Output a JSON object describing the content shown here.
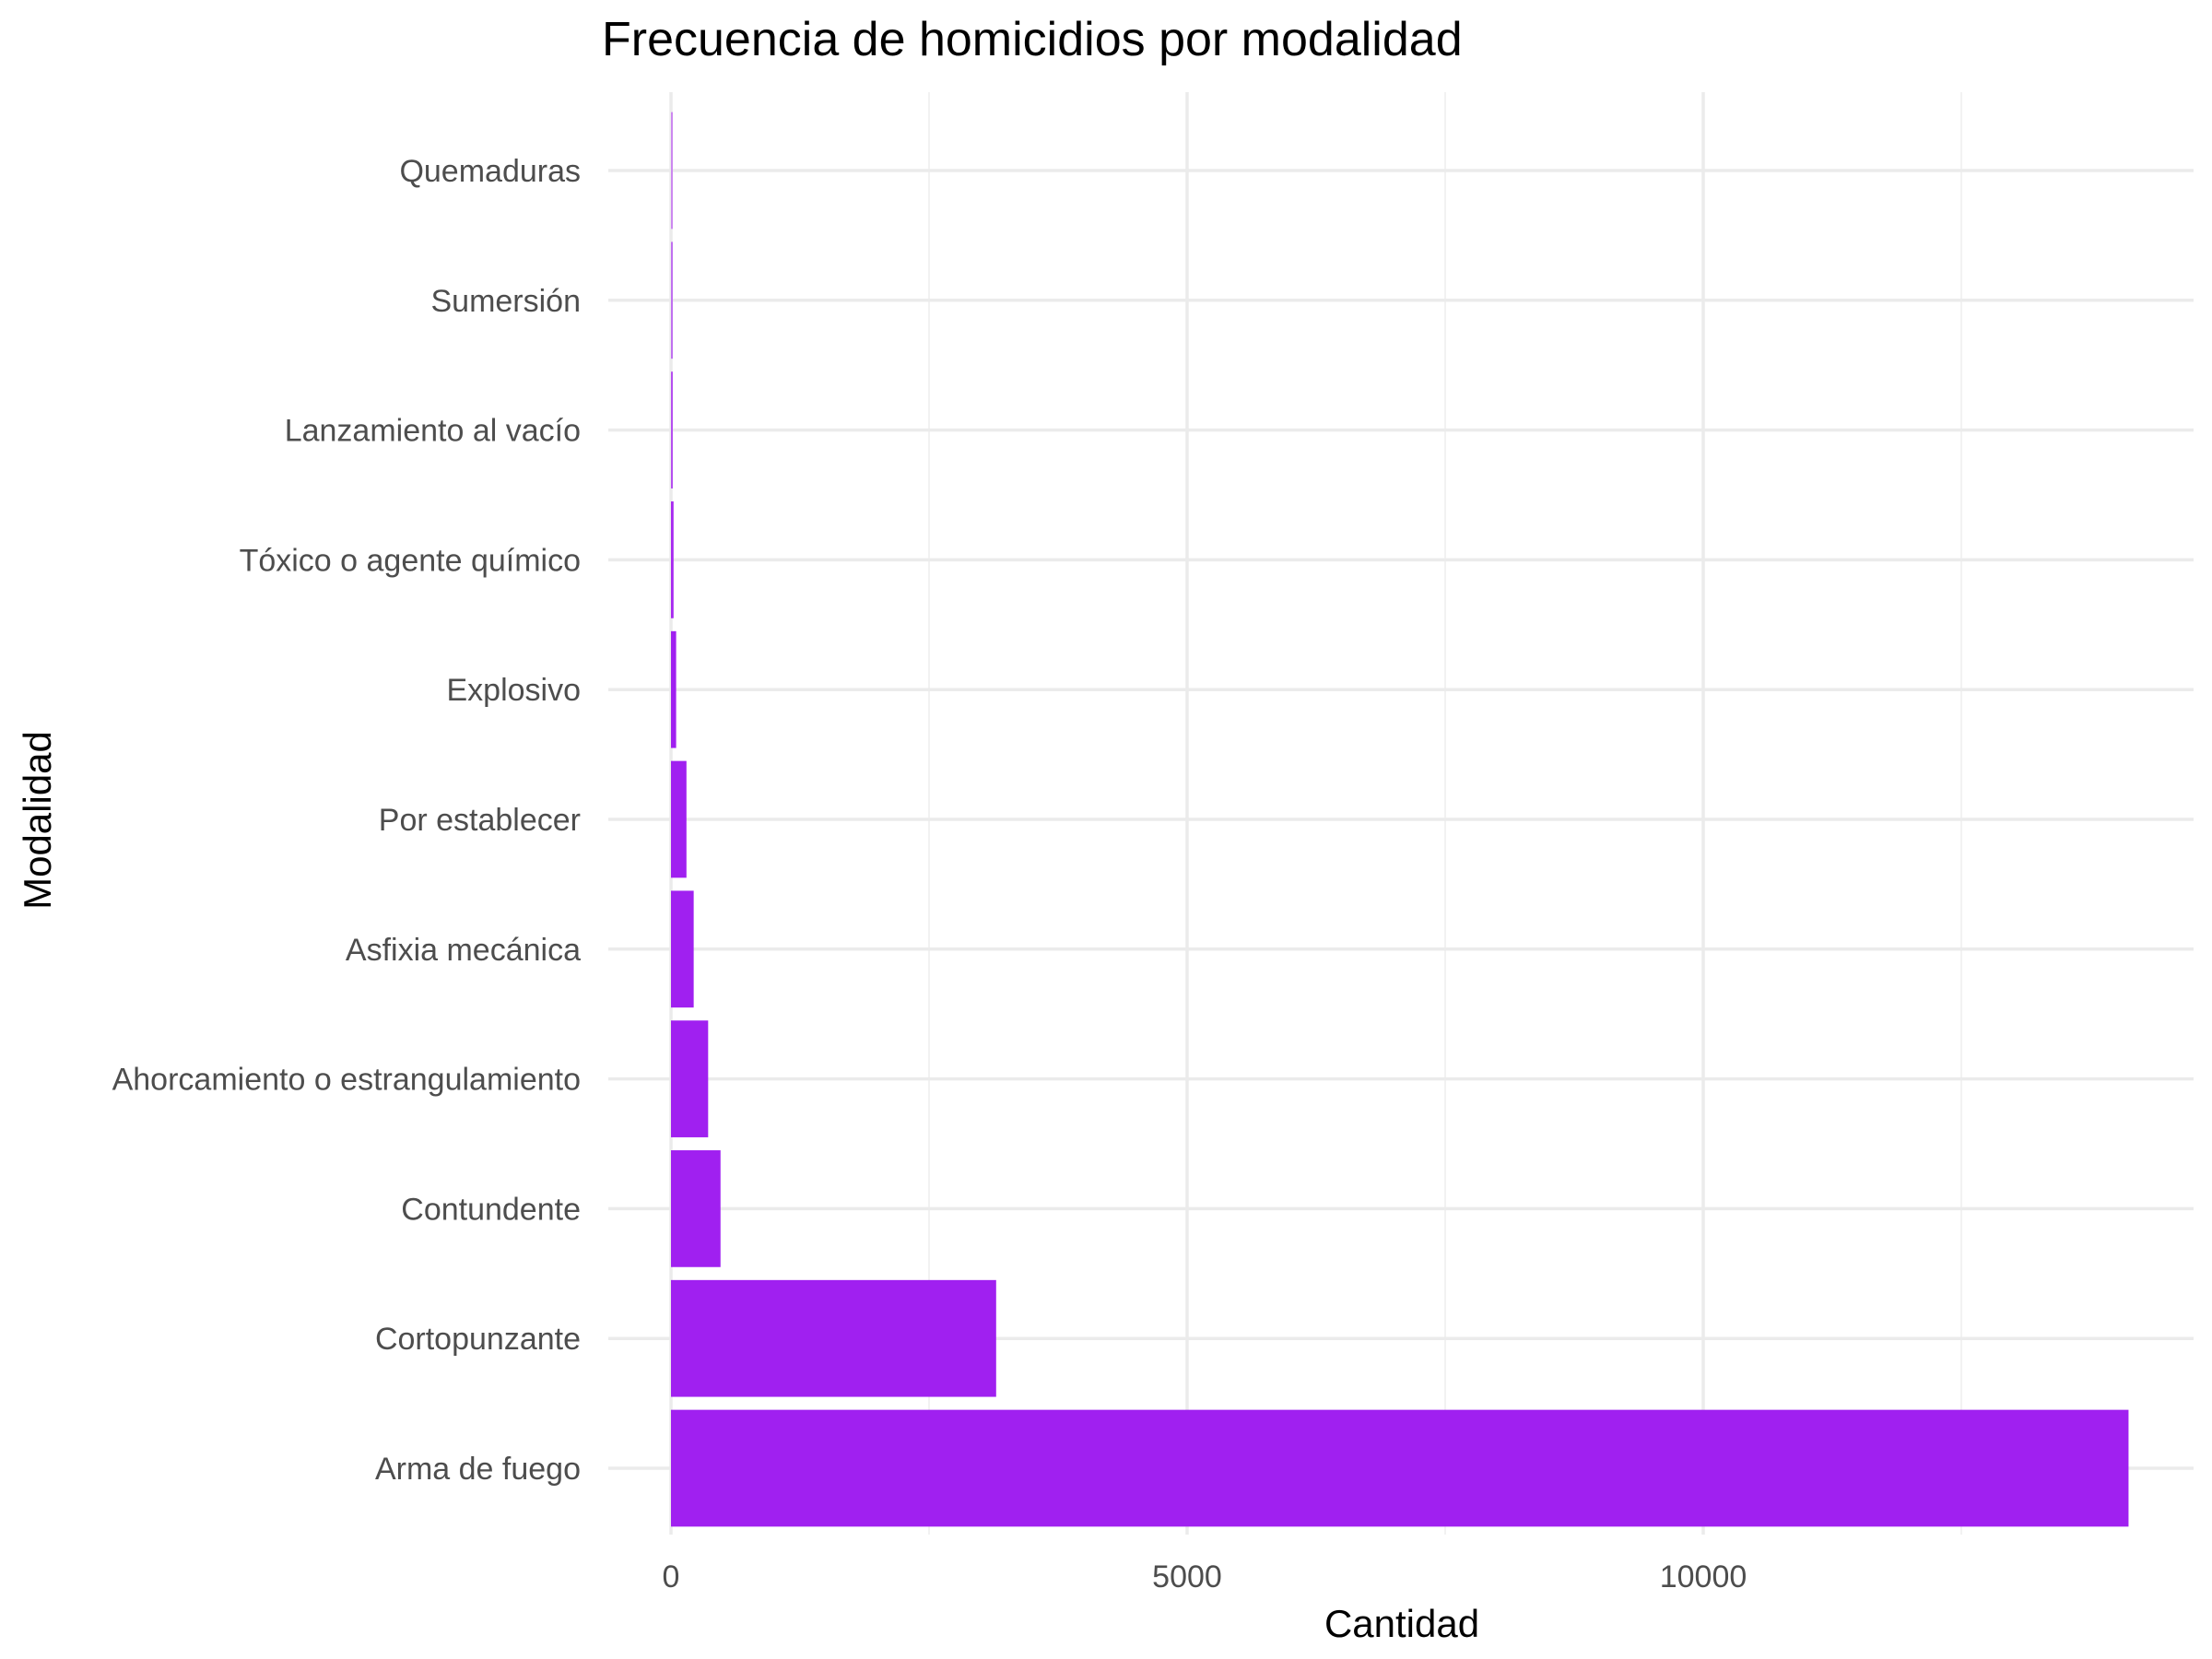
{
  "chart_data": {
    "type": "bar",
    "orientation": "horizontal",
    "title": "Frecuencia de homicidios por modalidad",
    "xlabel": "Cantidad",
    "ylabel": "Modalidad",
    "categories": [
      "Arma de fuego",
      "Cortopunzante",
      "Contundente",
      "Ahorcamiento o estrangulamiento",
      "Asfixia mecánica",
      "Por establecer",
      "Explosivo",
      "Tóxico o agente químico",
      "Lanzamiento al vacío",
      "Sumersión",
      "Quemaduras"
    ],
    "values": [
      14120,
      3150,
      480,
      360,
      220,
      150,
      50,
      25,
      15,
      12,
      10
    ],
    "colors": [
      "#a020f0",
      "#a020f0",
      "#a020f0",
      "#a020f0",
      "#a020f0",
      "#a020f0",
      "#a020f0",
      "#a729f0",
      "#b54ff0",
      "#c070f0",
      "#cc88f0"
    ],
    "xlim": [
      0,
      14800
    ],
    "xticks": [
      0,
      5000,
      10000
    ],
    "xticks_minor": [
      2500,
      7500,
      12500
    ],
    "grid": true,
    "legend": "none"
  }
}
